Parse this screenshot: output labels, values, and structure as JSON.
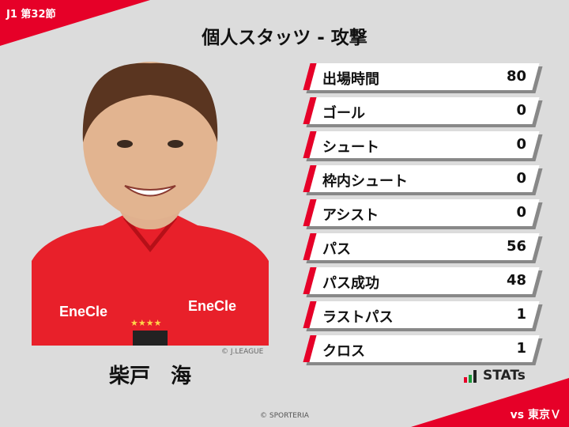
{
  "header": {
    "round": "J1 第32節",
    "title": "個人スタッツ - 攻撃"
  },
  "player": {
    "name": "柴戸　海",
    "photo_credit": "© J.LEAGUE",
    "sponsor": "EneCle"
  },
  "stats": [
    {
      "label": "出場時間",
      "value": "80"
    },
    {
      "label": "ゴール",
      "value": "0"
    },
    {
      "label": "シュート",
      "value": "0"
    },
    {
      "label": "枠内シュート",
      "value": "0"
    },
    {
      "label": "アシスト",
      "value": "0"
    },
    {
      "label": "パス",
      "value": "56"
    },
    {
      "label": "パス成功",
      "value": "48"
    },
    {
      "label": "ラストパス",
      "value": "1"
    },
    {
      "label": "クロス",
      "value": "1"
    }
  ],
  "logo": {
    "text": "STATs"
  },
  "footer": {
    "opponent": "vs 東京Ｖ",
    "copyright": "© SPORTERIA"
  },
  "colors": {
    "accent": "#e60028",
    "background": "#dcdcdc"
  }
}
